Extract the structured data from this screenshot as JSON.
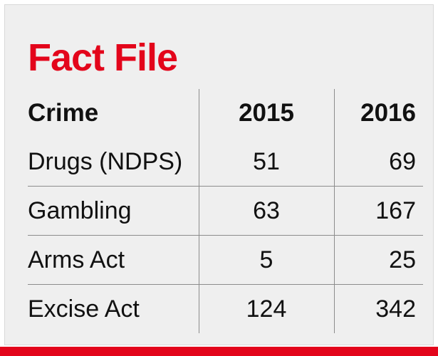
{
  "colors": {
    "accent": "#e3051b",
    "background": "#efefef",
    "text": "#111111",
    "rule": "#8c8c8c"
  },
  "chart_data": {
    "type": "table",
    "title": "Fact File",
    "columns": [
      "Crime",
      "2015",
      "2016"
    ],
    "rows": [
      {
        "crime": "Drugs (NDPS)",
        "y2015": "51",
        "y2016": "69"
      },
      {
        "crime": "Gambling",
        "y2015": "63",
        "y2016": "167"
      },
      {
        "crime": "Arms Act",
        "y2015": "5",
        "y2016": "25"
      },
      {
        "crime": "Excise Act",
        "y2015": "124",
        "y2016": "342"
      }
    ]
  }
}
